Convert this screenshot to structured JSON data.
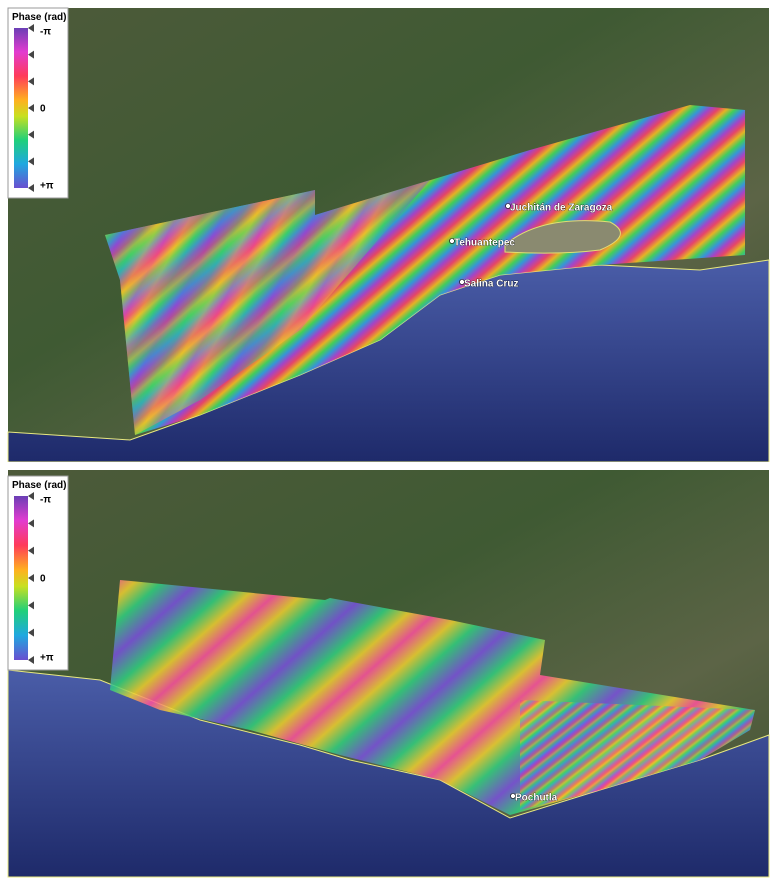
{
  "panels": [
    {
      "legend": {
        "title": "Phase (rad)",
        "labels": [
          "-π",
          "0",
          "+π"
        ]
      },
      "places": [
        "Juchitán de Zaragoza",
        "Tehuantepec",
        "Salina Cruz"
      ]
    },
    {
      "legend": {
        "title": "Phase (rad)",
        "labels": [
          "-π",
          "0",
          "+π"
        ]
      },
      "places": [
        "Pochutla"
      ]
    }
  ]
}
